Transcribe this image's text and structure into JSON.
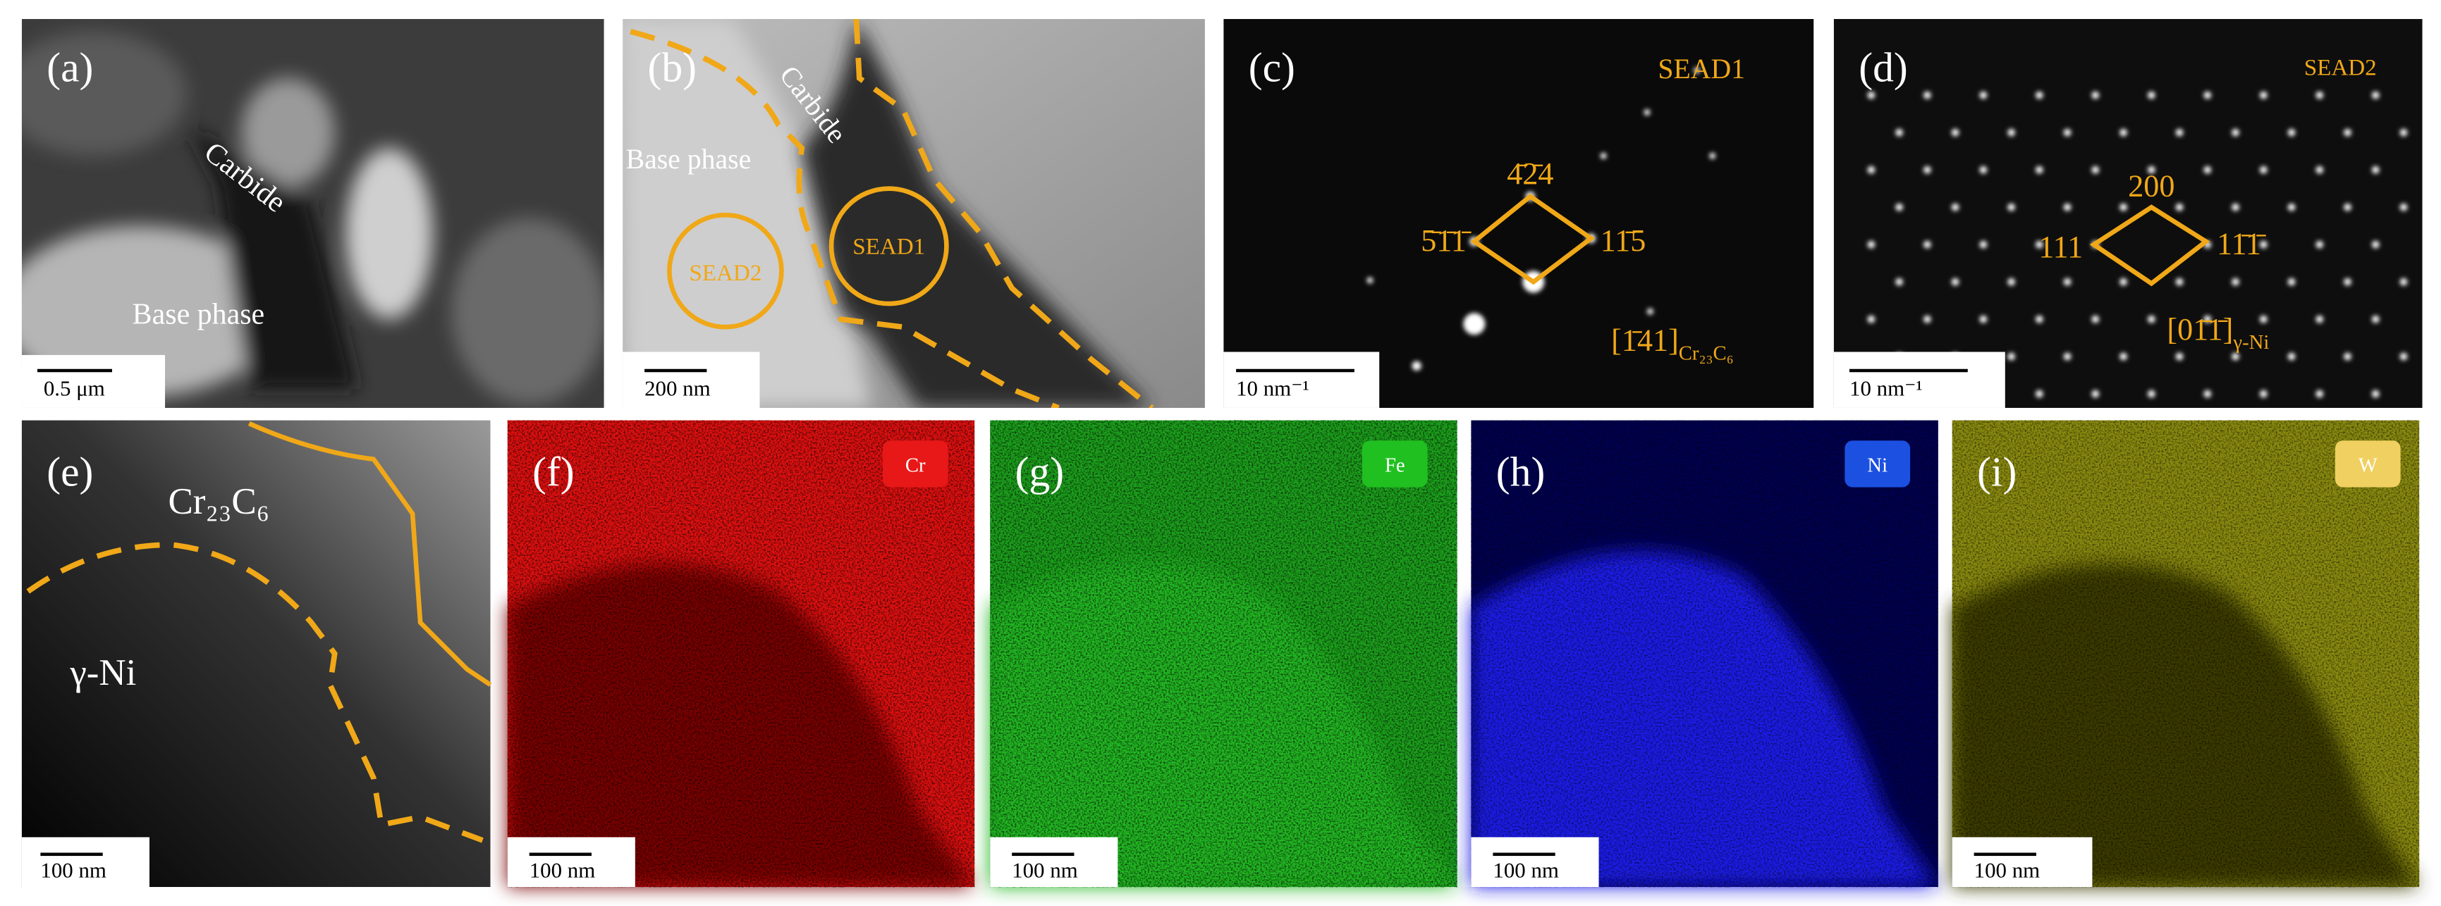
{
  "panels": [
    {
      "label": "(a)",
      "scale_bar": "0.5 μm",
      "annotations": [
        "Carbide",
        "Base phase"
      ]
    },
    {
      "label": "(b)",
      "scale_bar": "200 nm",
      "annotations": [
        "Carbide",
        "Base phase",
        "SEAD1",
        "SEAD2"
      ]
    },
    {
      "label": "(c)",
      "scale_bar": "10 nm⁻¹",
      "annotations": [
        "SEAD1",
        "4̄2̄4",
        "5̄1̄1̄",
        "11̄5"
      ],
      "zone_axis": "[1̄41]",
      "zone_axis_phase": "Cr₂₃C₆"
    },
    {
      "label": "(d)",
      "scale_bar": "10 nm⁻¹",
      "annotations": [
        "SEAD2",
        "200",
        "111",
        "11̄1̄"
      ],
      "zone_axis": "[01̄1̄]",
      "zone_axis_phase": "γ-Ni"
    },
    {
      "label": "(e)",
      "scale_bar": "100 nm",
      "annotations": [
        "Cr₂₃C₆",
        "γ-Ni"
      ]
    },
    {
      "label": "(f)",
      "scale_bar": "100 nm",
      "element": "Cr"
    },
    {
      "label": "(g)",
      "scale_bar": "100 nm",
      "element": "Fe"
    },
    {
      "label": "(h)",
      "scale_bar": "100 nm",
      "element": "Ni"
    },
    {
      "label": "(i)",
      "scale_bar": "100 nm",
      "element": "W"
    }
  ]
}
